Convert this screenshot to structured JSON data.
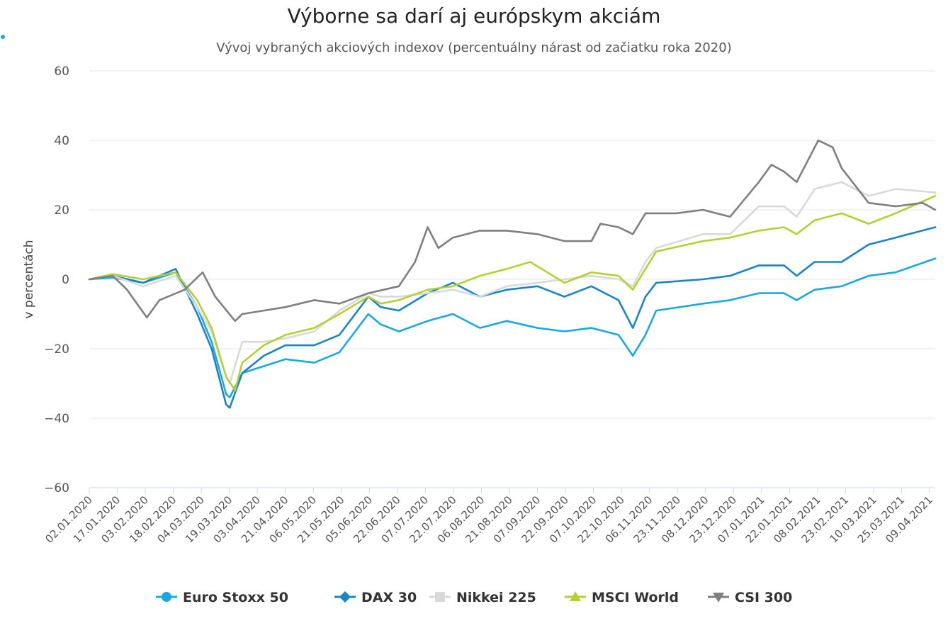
{
  "chart_data": {
    "type": "line",
    "title": "Výborne sa darí aj európskym akciám",
    "subtitle": "Vývoj vybraných akciových indexov (percentuálny nárast od začiatku roka 2020)",
    "ylabel": "v percentách",
    "xlabel": "",
    "ylim": [
      -60,
      60
    ],
    "y_ticks": [
      60,
      40,
      20,
      0,
      -20,
      -40,
      -60
    ],
    "y_tick_labels": [
      "60",
      "40",
      "20",
      "0",
      "−20",
      "−40",
      "−60"
    ],
    "x_start": "2020-01-02",
    "x_end": "2021-04-16",
    "x_tick_labels": [
      "02.01.2020",
      "17.01.2020",
      "03.02.2020",
      "18.02.2020",
      "04.03.2020",
      "19.03.2020",
      "03.04.2020",
      "21.04.2020",
      "06.05.2020",
      "21.05.2020",
      "05.06.2020",
      "22.06.2020",
      "07.07.2020",
      "22.07.2020",
      "06.08.2020",
      "21.08.2020",
      "07.09.2020",
      "22.09.2020",
      "07.10.2020",
      "22.10.2020",
      "06.11.2020",
      "23.11.2020",
      "08.12.2020",
      "23.12.2020",
      "07.01.2021",
      "22.01.2021",
      "08.02.2021",
      "23.02.2021",
      "10.03.2021",
      "25.03.2021",
      "09.04.2021"
    ],
    "grid": true,
    "legend_position": "bottom",
    "series": [
      {
        "name": "Euro Stoxx 50",
        "color": "#1aa7e6",
        "marker": "circle",
        "points": [
          [
            "2020-01-02",
            0
          ],
          [
            "2020-01-15",
            0.5
          ],
          [
            "2020-02-01",
            -1
          ],
          [
            "2020-02-19",
            2
          ],
          [
            "2020-03-02",
            -8
          ],
          [
            "2020-03-10",
            -18
          ],
          [
            "2020-03-18",
            -33
          ],
          [
            "2020-03-20",
            -34
          ],
          [
            "2020-03-27",
            -27
          ],
          [
            "2020-04-08",
            -25
          ],
          [
            "2020-04-20",
            -23
          ],
          [
            "2020-05-06",
            -24
          ],
          [
            "2020-05-20",
            -21
          ],
          [
            "2020-06-05",
            -10
          ],
          [
            "2020-06-12",
            -13
          ],
          [
            "2020-06-22",
            -15
          ],
          [
            "2020-07-08",
            -12
          ],
          [
            "2020-07-22",
            -10
          ],
          [
            "2020-08-06",
            -14
          ],
          [
            "2020-08-21",
            -12
          ],
          [
            "2020-09-07",
            -14
          ],
          [
            "2020-09-22",
            -15
          ],
          [
            "2020-10-07",
            -14
          ],
          [
            "2020-10-22",
            -16
          ],
          [
            "2020-10-30",
            -22
          ],
          [
            "2020-11-06",
            -16
          ],
          [
            "2020-11-12",
            -9
          ],
          [
            "2020-12-08",
            -7
          ],
          [
            "2020-12-23",
            -6
          ],
          [
            "2021-01-08",
            -4
          ],
          [
            "2021-01-22",
            -4
          ],
          [
            "2021-01-29",
            -6
          ],
          [
            "2021-02-08",
            -3
          ],
          [
            "2021-02-23",
            -2
          ],
          [
            "2021-03-10",
            1
          ],
          [
            "2021-03-25",
            2
          ],
          [
            "2021-04-16",
            6
          ]
        ]
      },
      {
        "name": "DAX 30",
        "color": "#1a85c4",
        "marker": "diamond",
        "points": [
          [
            "2020-01-02",
            0
          ],
          [
            "2020-01-15",
            1
          ],
          [
            "2020-02-01",
            -1
          ],
          [
            "2020-02-19",
            3
          ],
          [
            "2020-03-02",
            -10
          ],
          [
            "2020-03-10",
            -20
          ],
          [
            "2020-03-18",
            -36
          ],
          [
            "2020-03-20",
            -37
          ],
          [
            "2020-03-27",
            -27
          ],
          [
            "2020-04-08",
            -22
          ],
          [
            "2020-04-20",
            -19
          ],
          [
            "2020-05-06",
            -19
          ],
          [
            "2020-05-20",
            -16
          ],
          [
            "2020-06-05",
            -5
          ],
          [
            "2020-06-12",
            -8
          ],
          [
            "2020-06-22",
            -9
          ],
          [
            "2020-07-08",
            -4
          ],
          [
            "2020-07-22",
            -1
          ],
          [
            "2020-08-06",
            -5
          ],
          [
            "2020-08-21",
            -3
          ],
          [
            "2020-09-07",
            -2
          ],
          [
            "2020-09-22",
            -5
          ],
          [
            "2020-10-07",
            -2
          ],
          [
            "2020-10-22",
            -6
          ],
          [
            "2020-10-30",
            -14
          ],
          [
            "2020-11-06",
            -5
          ],
          [
            "2020-11-12",
            -1
          ],
          [
            "2020-12-08",
            0
          ],
          [
            "2020-12-23",
            1
          ],
          [
            "2021-01-08",
            4
          ],
          [
            "2021-01-22",
            4
          ],
          [
            "2021-01-29",
            1
          ],
          [
            "2021-02-08",
            5
          ],
          [
            "2021-02-23",
            5
          ],
          [
            "2021-03-10",
            10
          ],
          [
            "2021-03-25",
            12
          ],
          [
            "2021-04-16",
            15
          ]
        ]
      },
      {
        "name": "Nikkei 225",
        "color": "#d9d9d9",
        "marker": "square",
        "points": [
          [
            "2020-01-02",
            0
          ],
          [
            "2020-01-15",
            1
          ],
          [
            "2020-02-01",
            -2
          ],
          [
            "2020-02-19",
            1
          ],
          [
            "2020-03-02",
            -8
          ],
          [
            "2020-03-10",
            -15
          ],
          [
            "2020-03-18",
            -28
          ],
          [
            "2020-03-20",
            -30
          ],
          [
            "2020-03-27",
            -18
          ],
          [
            "2020-04-08",
            -18
          ],
          [
            "2020-04-20",
            -17
          ],
          [
            "2020-05-06",
            -15
          ],
          [
            "2020-05-20",
            -9
          ],
          [
            "2020-06-05",
            -4
          ],
          [
            "2020-06-12",
            -5
          ],
          [
            "2020-06-22",
            -5
          ],
          [
            "2020-07-08",
            -4
          ],
          [
            "2020-07-22",
            -3
          ],
          [
            "2020-08-06",
            -5
          ],
          [
            "2020-08-21",
            -2
          ],
          [
            "2020-09-07",
            -1
          ],
          [
            "2020-09-22",
            0
          ],
          [
            "2020-10-07",
            1
          ],
          [
            "2020-10-22",
            0
          ],
          [
            "2020-10-30",
            -2
          ],
          [
            "2020-11-06",
            5
          ],
          [
            "2020-11-12",
            9
          ],
          [
            "2020-12-08",
            13
          ],
          [
            "2020-12-23",
            13
          ],
          [
            "2021-01-08",
            21
          ],
          [
            "2021-01-22",
            21
          ],
          [
            "2021-01-29",
            18
          ],
          [
            "2021-02-08",
            26
          ],
          [
            "2021-02-23",
            28
          ],
          [
            "2021-03-10",
            24
          ],
          [
            "2021-03-25",
            26
          ],
          [
            "2021-04-16",
            25
          ]
        ]
      },
      {
        "name": "MSCI World",
        "color": "#b6cf32",
        "marker": "triangle",
        "points": [
          [
            "2020-01-02",
            0
          ],
          [
            "2020-01-15",
            1.5
          ],
          [
            "2020-02-01",
            0
          ],
          [
            "2020-02-19",
            2
          ],
          [
            "2020-03-02",
            -6
          ],
          [
            "2020-03-10",
            -14
          ],
          [
            "2020-03-18",
            -28
          ],
          [
            "2020-03-23",
            -32
          ],
          [
            "2020-03-27",
            -24
          ],
          [
            "2020-04-08",
            -19
          ],
          [
            "2020-04-20",
            -16
          ],
          [
            "2020-05-06",
            -14
          ],
          [
            "2020-05-20",
            -10
          ],
          [
            "2020-06-05",
            -5
          ],
          [
            "2020-06-12",
            -7
          ],
          [
            "2020-06-22",
            -6
          ],
          [
            "2020-07-08",
            -3
          ],
          [
            "2020-07-22",
            -2
          ],
          [
            "2020-08-06",
            1
          ],
          [
            "2020-08-21",
            3
          ],
          [
            "2020-09-03",
            5
          ],
          [
            "2020-09-22",
            -1
          ],
          [
            "2020-10-07",
            2
          ],
          [
            "2020-10-22",
            1
          ],
          [
            "2020-10-30",
            -3
          ],
          [
            "2020-11-06",
            3
          ],
          [
            "2020-11-12",
            8
          ],
          [
            "2020-12-08",
            11
          ],
          [
            "2020-12-23",
            12
          ],
          [
            "2021-01-08",
            14
          ],
          [
            "2021-01-22",
            15
          ],
          [
            "2021-01-29",
            13
          ],
          [
            "2021-02-08",
            17
          ],
          [
            "2021-02-23",
            19
          ],
          [
            "2021-03-10",
            16
          ],
          [
            "2021-03-25",
            19
          ],
          [
            "2021-04-16",
            24
          ]
        ]
      },
      {
        "name": "CSI 300",
        "color": "#7f7f7f",
        "marker": "triangle-down",
        "points": [
          [
            "2020-01-02",
            0
          ],
          [
            "2020-01-15",
            1
          ],
          [
            "2020-01-23",
            -3
          ],
          [
            "2020-02-03",
            -11
          ],
          [
            "2020-02-10",
            -6
          ],
          [
            "2020-02-24",
            -3
          ],
          [
            "2020-03-05",
            2
          ],
          [
            "2020-03-12",
            -5
          ],
          [
            "2020-03-23",
            -12
          ],
          [
            "2020-03-27",
            -10
          ],
          [
            "2020-04-08",
            -9
          ],
          [
            "2020-04-20",
            -8
          ],
          [
            "2020-05-06",
            -6
          ],
          [
            "2020-05-20",
            -7
          ],
          [
            "2020-06-05",
            -4
          ],
          [
            "2020-06-22",
            -2
          ],
          [
            "2020-07-01",
            5
          ],
          [
            "2020-07-08",
            15
          ],
          [
            "2020-07-14",
            9
          ],
          [
            "2020-07-22",
            12
          ],
          [
            "2020-08-06",
            14
          ],
          [
            "2020-08-21",
            14
          ],
          [
            "2020-09-07",
            13
          ],
          [
            "2020-09-22",
            11
          ],
          [
            "2020-10-07",
            11
          ],
          [
            "2020-10-12",
            16
          ],
          [
            "2020-10-22",
            15
          ],
          [
            "2020-10-30",
            13
          ],
          [
            "2020-11-06",
            19
          ],
          [
            "2020-11-23",
            19
          ],
          [
            "2020-12-08",
            20
          ],
          [
            "2020-12-23",
            18
          ],
          [
            "2021-01-08",
            28
          ],
          [
            "2021-01-15",
            33
          ],
          [
            "2021-01-22",
            31
          ],
          [
            "2021-01-29",
            28
          ],
          [
            "2021-02-10",
            40
          ],
          [
            "2021-02-18",
            38
          ],
          [
            "2021-02-23",
            32
          ],
          [
            "2021-03-10",
            22
          ],
          [
            "2021-03-25",
            21
          ],
          [
            "2021-04-09",
            22
          ],
          [
            "2021-04-16",
            20
          ]
        ]
      }
    ]
  }
}
